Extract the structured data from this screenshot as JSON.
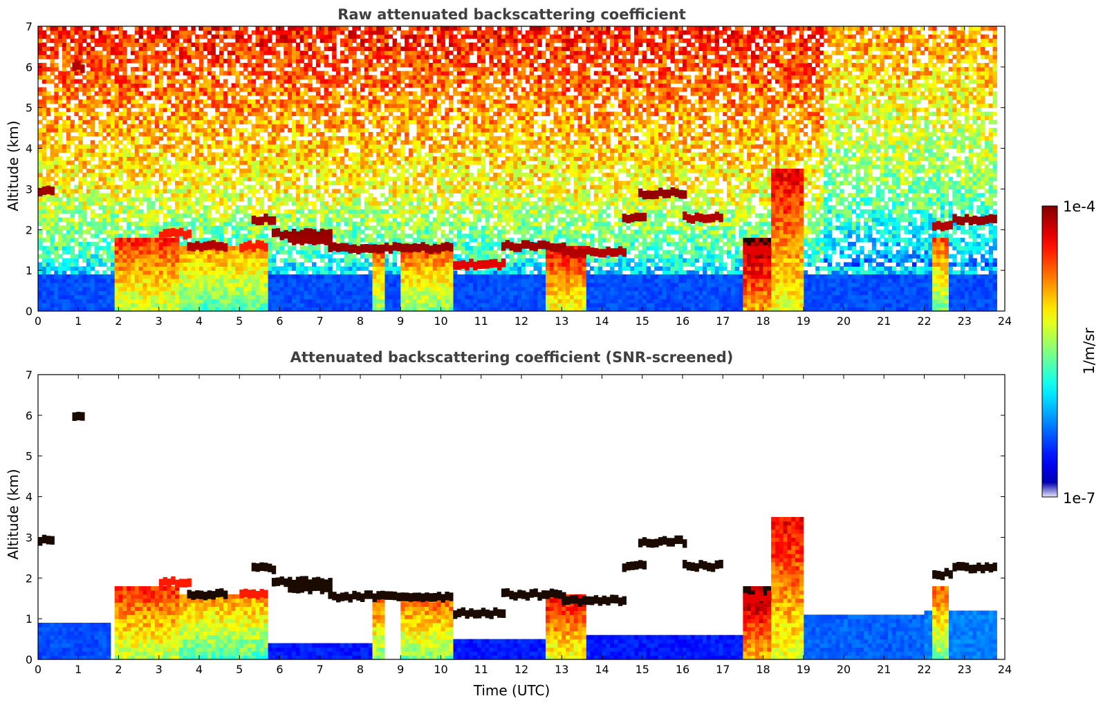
{
  "chart_data": [
    {
      "type": "heatmap",
      "title": "Raw attenuated backscattering coefficient",
      "xlabel": "",
      "ylabel": "Altitude (km)",
      "xlim": [
        0,
        24
      ],
      "ylim": [
        0,
        7
      ],
      "xticks": [
        0,
        1,
        2,
        3,
        4,
        5,
        6,
        7,
        8,
        9,
        10,
        11,
        12,
        13,
        14,
        15,
        16,
        17,
        18,
        19,
        20,
        21,
        22,
        23,
        24
      ],
      "yticks": [
        0,
        1,
        2,
        3,
        4,
        5,
        6,
        7
      ],
      "data_end_time": 23.8,
      "noisy": true,
      "cloud_layers": [
        {
          "t": [
            0.0,
            0.4
          ],
          "alt": 2.95,
          "level": 0.97
        },
        {
          "t": [
            0.85,
            1.15
          ],
          "alt": 6.0,
          "level": 0.95
        },
        {
          "t": [
            3.0,
            3.8
          ],
          "alt": 1.9,
          "level": 0.85
        },
        {
          "t": [
            3.7,
            4.6
          ],
          "alt": 1.6,
          "level": 0.95
        },
        {
          "t": [
            5.0,
            5.6
          ],
          "alt": 1.6,
          "level": 0.85
        },
        {
          "t": [
            5.3,
            5.8
          ],
          "alt": 2.25,
          "level": 0.97
        },
        {
          "t": [
            5.8,
            7.2
          ],
          "alt": 1.9,
          "level": 0.98
        },
        {
          "t": [
            6.2,
            7.2
          ],
          "alt": 1.75,
          "level": 0.97
        },
        {
          "t": [
            7.2,
            10.2
          ],
          "alt": 1.55,
          "level": 0.98
        },
        {
          "t": [
            10.3,
            11.5
          ],
          "alt": 1.15,
          "level": 0.9
        },
        {
          "t": [
            11.5,
            13.0
          ],
          "alt": 1.6,
          "level": 0.97
        },
        {
          "t": [
            13.0,
            14.5
          ],
          "alt": 1.45,
          "level": 0.95
        },
        {
          "t": [
            14.5,
            15.0
          ],
          "alt": 2.3,
          "level": 0.97
        },
        {
          "t": [
            14.9,
            16.0
          ],
          "alt": 2.9,
          "level": 0.98
        },
        {
          "t": [
            16.0,
            17.0
          ],
          "alt": 2.3,
          "level": 0.95
        },
        {
          "t": [
            17.5,
            18.2
          ],
          "alt": 1.5,
          "level": 0.9
        },
        {
          "t": [
            22.2,
            22.7
          ],
          "alt": 2.1,
          "level": 0.95
        },
        {
          "t": [
            22.7,
            23.8
          ],
          "alt": 2.25,
          "level": 0.98
        }
      ],
      "precip_columns": [
        {
          "t": [
            1.9,
            3.5
          ],
          "top": 1.8,
          "level": 0.55
        },
        {
          "t": [
            3.5,
            5.6
          ],
          "top": 1.6,
          "level": 0.45
        },
        {
          "t": [
            8.3,
            8.6
          ],
          "top": 1.5,
          "level": 0.5
        },
        {
          "t": [
            9.0,
            10.2
          ],
          "top": 1.5,
          "level": 0.5
        },
        {
          "t": [
            12.6,
            13.5
          ],
          "top": 1.6,
          "level": 0.6
        },
        {
          "t": [
            17.5,
            18.2
          ],
          "top": 1.8,
          "level": 0.7
        },
        {
          "t": [
            18.2,
            19.0
          ],
          "top": 3.5,
          "level": 0.6
        },
        {
          "t": [
            22.2,
            22.6
          ],
          "top": 1.8,
          "level": 0.5
        }
      ],
      "boundary_layer": [
        {
          "t": [
            0.0,
            24.0
          ],
          "top": 0.8,
          "level": 0.2
        }
      ]
    },
    {
      "type": "heatmap",
      "title": "Attenuated backscattering coefficient (SNR-screened)",
      "xlabel": "Time (UTC)",
      "ylabel": "Altitude (km)",
      "xlim": [
        0,
        24
      ],
      "ylim": [
        0,
        7
      ],
      "xticks": [
        0,
        1,
        2,
        3,
        4,
        5,
        6,
        7,
        8,
        9,
        10,
        11,
        12,
        13,
        14,
        15,
        16,
        17,
        18,
        19,
        20,
        21,
        22,
        23,
        24
      ],
      "yticks": [
        0,
        1,
        2,
        3,
        4,
        5,
        6,
        7
      ],
      "data_end_time": 23.8,
      "noisy": false,
      "cloud_layers": [
        {
          "t": [
            0.0,
            0.4
          ],
          "alt": 2.95,
          "level": 1.0
        },
        {
          "t": [
            0.85,
            1.15
          ],
          "alt": 6.0,
          "level": 1.0
        },
        {
          "t": [
            3.0,
            3.8
          ],
          "alt": 1.9,
          "level": 0.85
        },
        {
          "t": [
            3.7,
            4.6
          ],
          "alt": 1.6,
          "level": 1.0
        },
        {
          "t": [
            5.0,
            5.6
          ],
          "alt": 1.6,
          "level": 0.85
        },
        {
          "t": [
            5.3,
            5.8
          ],
          "alt": 2.25,
          "level": 1.0
        },
        {
          "t": [
            5.8,
            7.2
          ],
          "alt": 1.9,
          "level": 1.0
        },
        {
          "t": [
            6.2,
            7.2
          ],
          "alt": 1.75,
          "level": 1.0
        },
        {
          "t": [
            7.2,
            10.2
          ],
          "alt": 1.55,
          "level": 1.0
        },
        {
          "t": [
            10.3,
            11.5
          ],
          "alt": 1.15,
          "level": 1.0
        },
        {
          "t": [
            11.5,
            13.0
          ],
          "alt": 1.6,
          "level": 1.0
        },
        {
          "t": [
            13.0,
            14.5
          ],
          "alt": 1.45,
          "level": 1.0
        },
        {
          "t": [
            14.5,
            15.0
          ],
          "alt": 2.3,
          "level": 1.0
        },
        {
          "t": [
            14.9,
            16.0
          ],
          "alt": 2.9,
          "level": 1.0
        },
        {
          "t": [
            16.0,
            17.0
          ],
          "alt": 2.3,
          "level": 1.0
        },
        {
          "t": [
            17.5,
            18.2
          ],
          "alt": 1.5,
          "level": 0.9
        },
        {
          "t": [
            22.2,
            22.7
          ],
          "alt": 2.1,
          "level": 1.0
        },
        {
          "t": [
            22.7,
            23.8
          ],
          "alt": 2.25,
          "level": 1.0
        }
      ],
      "precip_columns": [
        {
          "t": [
            1.9,
            3.5
          ],
          "top": 1.8,
          "level": 0.55
        },
        {
          "t": [
            3.5,
            5.6
          ],
          "top": 1.6,
          "level": 0.45
        },
        {
          "t": [
            8.3,
            8.6
          ],
          "top": 1.5,
          "level": 0.5
        },
        {
          "t": [
            9.0,
            10.2
          ],
          "top": 1.5,
          "level": 0.5
        },
        {
          "t": [
            12.6,
            13.5
          ],
          "top": 1.6,
          "level": 0.6
        },
        {
          "t": [
            17.5,
            18.2
          ],
          "top": 1.8,
          "level": 0.7
        },
        {
          "t": [
            18.2,
            19.0
          ],
          "top": 3.5,
          "level": 0.6
        },
        {
          "t": [
            22.2,
            22.6
          ],
          "top": 1.8,
          "level": 0.5
        }
      ],
      "boundary_layer": [
        {
          "t": [
            0.0,
            1.8
          ],
          "top": 0.8,
          "level": 0.2
        },
        {
          "t": [
            5.6,
            8.3
          ],
          "top": 0.4,
          "level": 0.15
        },
        {
          "t": [
            10.2,
            12.6
          ],
          "top": 0.5,
          "level": 0.15
        },
        {
          "t": [
            13.5,
            17.5
          ],
          "top": 0.55,
          "level": 0.15
        },
        {
          "t": [
            18.2,
            22.0
          ],
          "top": 1.05,
          "level": 0.22
        },
        {
          "t": [
            22.0,
            23.8
          ],
          "top": 1.1,
          "level": 0.25
        }
      ]
    }
  ],
  "colorbar": {
    "label": "1/m/sr",
    "max_label": "1e-4",
    "min_label": "1e-7",
    "scale": "log",
    "colormap": "jet",
    "range": [
      1e-07,
      0.0001
    ]
  }
}
